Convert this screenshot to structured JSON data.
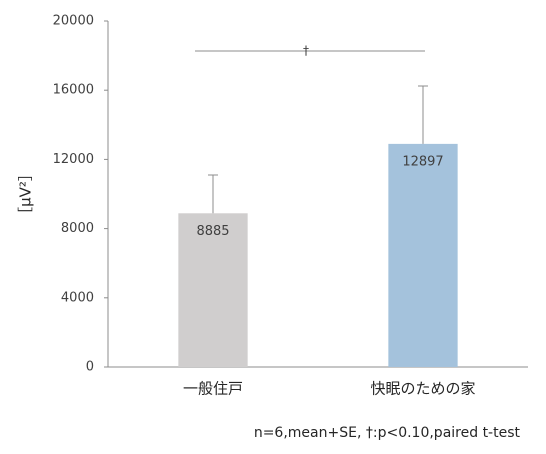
{
  "chart_data": {
    "type": "bar",
    "categories": [
      "一般住戸",
      "快眠のための家"
    ],
    "values": [
      8885,
      12897
    ],
    "errors": [
      2213,
      3346
    ],
    "colors": [
      "#d0cece",
      "#a4c2dc"
    ],
    "ylim": [
      0,
      20000
    ],
    "yticks": [
      0,
      4000,
      8000,
      12000,
      16000,
      20000
    ],
    "ylabel": "［μV²］",
    "annotation": "†",
    "note": "n=6,mean+SE, †:p<0.10,paired t-test"
  }
}
